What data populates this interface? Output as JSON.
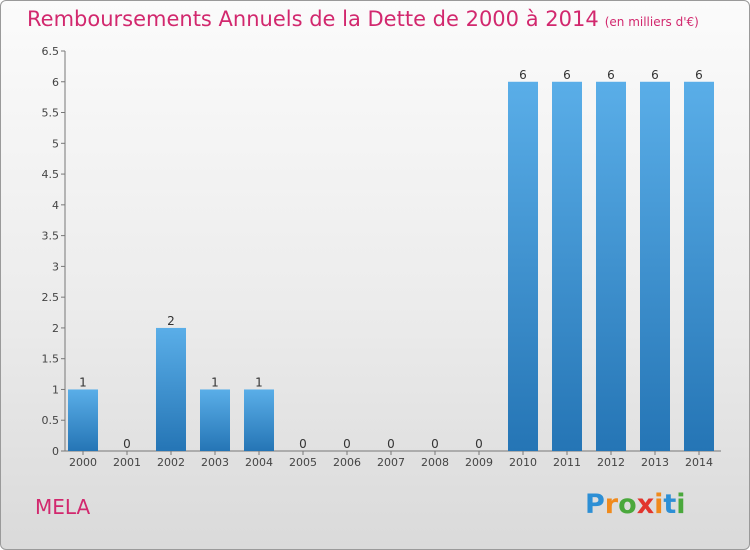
{
  "title": "Remboursements Annuels de la Dette de 2000 à 2014",
  "unit_note": "(en milliers d'€)",
  "place_name": "MELA",
  "logo": {
    "text": "Proxiti",
    "letter_colors": [
      "#2d8fd5",
      "#f08a1c",
      "#4aa83c",
      "#e2352d",
      "#f08a1c",
      "#2d8fd5",
      "#4aa83c"
    ]
  },
  "colors": {
    "title": "#d2286e",
    "bar_top": "#5aaee8",
    "bar_bottom": "#2575b5"
  },
  "chart_data": {
    "type": "bar",
    "categories": [
      "2000",
      "2001",
      "2002",
      "2003",
      "2004",
      "2005",
      "2006",
      "2007",
      "2008",
      "2009",
      "2010",
      "2011",
      "2012",
      "2013",
      "2014"
    ],
    "values": [
      1,
      0,
      2,
      1,
      1,
      0,
      0,
      0,
      0,
      0,
      6,
      6,
      6,
      6,
      6
    ],
    "value_labels": [
      "1",
      "0",
      "2",
      "1",
      "1",
      "0",
      "0",
      "0",
      "0",
      "0",
      "6",
      "6",
      "6",
      "6",
      "6"
    ],
    "yticks": [
      "0",
      "0.5",
      "1",
      "1.5",
      "2",
      "2.5",
      "3",
      "3.5",
      "4",
      "4.5",
      "5",
      "5.5",
      "6",
      "6.5"
    ],
    "ylim": [
      0,
      6.5
    ],
    "title": "Remboursements Annuels de la Dette de 2000 à 2014",
    "xlabel": "",
    "ylabel": "",
    "grid": false
  }
}
